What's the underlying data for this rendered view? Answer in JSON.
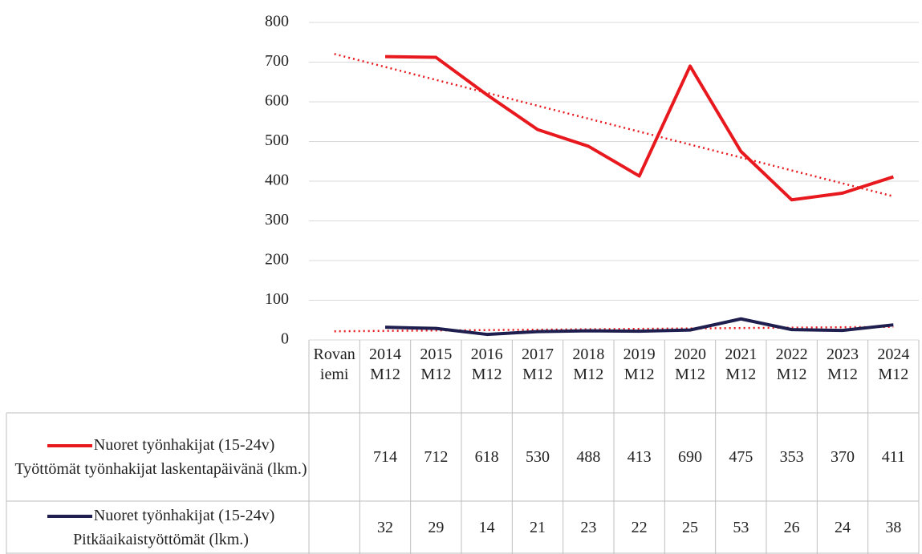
{
  "chart_data": {
    "type": "line",
    "categories": [
      "Rovaniemi",
      "2014 M12",
      "2015 M12",
      "2016 M12",
      "2017 M12",
      "2018 M12",
      "2019 M12",
      "2020 M12",
      "2021 M12",
      "2022 M12",
      "2023 M12",
      "2024 M12"
    ],
    "series": [
      {
        "name": "Nuoret työnhakijat (15-24v) Työttömät työnhakijat laskentapäivänä (lkm.)",
        "color": "#e8191e",
        "values": [
          null,
          714,
          712,
          618,
          530,
          488,
          413,
          690,
          475,
          353,
          370,
          411
        ]
      },
      {
        "name": "Nuoret työnhakijat (15-24v) Pitkäaikaistyöttömät (lkm.)",
        "color": "#1f1f4f",
        "values": [
          null,
          32,
          29,
          14,
          21,
          23,
          22,
          25,
          53,
          26,
          24,
          38
        ]
      }
    ],
    "ylim": [
      0,
      800
    ],
    "yticks": [
      0,
      100,
      200,
      300,
      400,
      500,
      600,
      700,
      800
    ],
    "grid": true,
    "trendline": true,
    "trendline_color": "#e8191e",
    "data_table": true
  }
}
